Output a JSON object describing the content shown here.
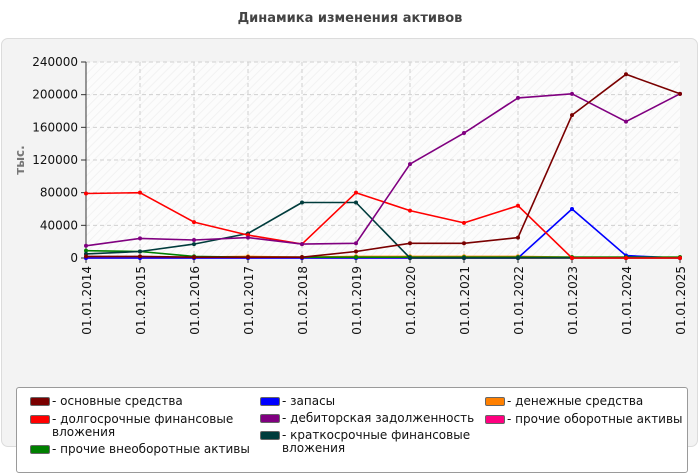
{
  "chart_data": {
    "type": "line",
    "title": "Динамика изменения активов",
    "ylabel": "тыс.",
    "xlabel": "",
    "ylim": [
      0,
      240000
    ],
    "yticks": [
      "0",
      "40000",
      "80000",
      "120000",
      "160000",
      "200000",
      "240000"
    ],
    "ytick_values": [
      0,
      40000,
      80000,
      120000,
      160000,
      200000,
      240000
    ],
    "categories": [
      "01.01.2014",
      "01.01.2015",
      "01.01.2016",
      "01.01.2017",
      "01.01.2018",
      "01.01.2019",
      "01.01.2020",
      "01.01.2021",
      "01.01.2022",
      "01.01.2023",
      "01.01.2024",
      "01.01.2025"
    ],
    "grid": true,
    "legend_position": "bottom",
    "series": [
      {
        "name": "- основные средства",
        "color": "#7a0000",
        "values": [
          2000,
          2000,
          1000,
          1000,
          1000,
          8000,
          18000,
          18000,
          25000,
          175000,
          225000,
          201000
        ]
      },
      {
        "name": "- долгосрочные финансовые вложения",
        "color": "#ff0000",
        "values": [
          79000,
          80000,
          44000,
          28000,
          17000,
          80000,
          58000,
          43000,
          64000,
          0,
          0,
          0
        ]
      },
      {
        "name": "- прочие внеоборотные активы",
        "color": "#008000",
        "values": [
          9000,
          8000,
          2000,
          1000,
          1000,
          1000,
          1000,
          1000,
          1000,
          1000,
          1000,
          1000
        ]
      },
      {
        "name": "- запасы",
        "color": "#0000ff",
        "values": [
          0,
          0,
          0,
          0,
          0,
          0,
          0,
          0,
          0,
          60000,
          3000,
          0
        ]
      },
      {
        "name": "- дебиторская задолженность",
        "color": "#800080",
        "values": [
          15000,
          24000,
          22000,
          25000,
          17000,
          18000,
          115000,
          153000,
          196000,
          201000,
          167000,
          201000
        ]
      },
      {
        "name": "- краткосрочные финансовые вложения",
        "color": "#003c3c",
        "values": [
          5000,
          8000,
          17000,
          30000,
          68000,
          68000,
          0,
          0,
          0,
          0,
          0,
          0
        ]
      },
      {
        "name": "- денежные средства",
        "color": "#ff8000",
        "values": [
          1000,
          1000,
          1000,
          2000,
          1000,
          2000,
          2000,
          2000,
          2000,
          1000,
          1000,
          1000
        ]
      },
      {
        "name": "- прочие оборотные активы",
        "color": "#ff0080",
        "values": [
          0,
          0,
          0,
          0,
          0,
          0,
          0,
          0,
          0,
          0,
          0,
          0
        ]
      }
    ]
  }
}
